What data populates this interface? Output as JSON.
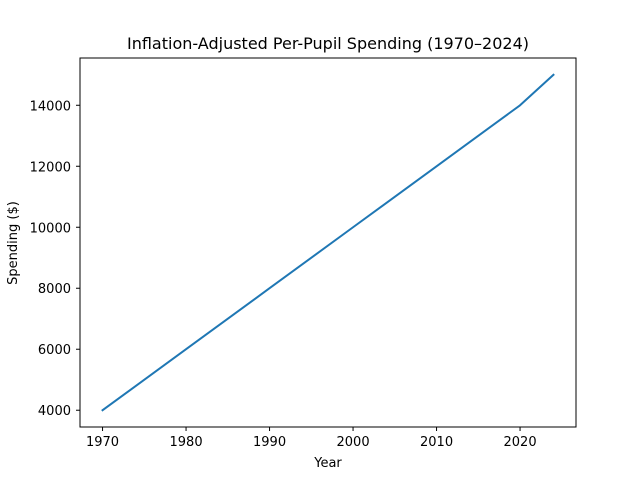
{
  "chart_data": {
    "type": "line",
    "title": "Inflation-Adjusted Per-Pupil Spending (1970–2024)",
    "xlabel": "Year",
    "ylabel": "Spending ($)",
    "xlim": [
      1967.3,
      2026.7
    ],
    "ylim": [
      3450,
      15550
    ],
    "xticks": [
      1970,
      1980,
      1990,
      2000,
      2010,
      2020
    ],
    "yticks": [
      4000,
      6000,
      8000,
      10000,
      12000,
      14000
    ],
    "grid": false,
    "series": [
      {
        "color": "#1f77b4",
        "x": [
          1970,
          1980,
          1990,
          2000,
          2010,
          2020,
          2024
        ],
        "y": [
          4000,
          6000,
          8000,
          10000,
          12000,
          14000,
          15000
        ]
      }
    ]
  }
}
